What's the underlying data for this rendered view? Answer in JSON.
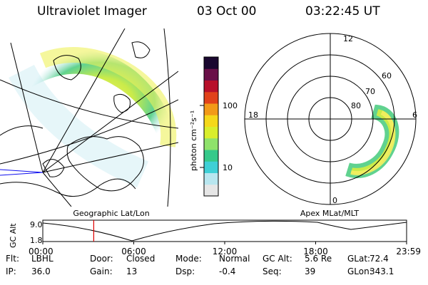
{
  "header": {
    "title": "Ultraviolet Imager",
    "date": "03 Oct 00",
    "time": "03:22:45 UT"
  },
  "left_panel": {
    "label": "Geographic Lat/Lon"
  },
  "colorbar": {
    "axis_label": "photon cm⁻²s⁻¹",
    "tick_100": "100",
    "tick_10": "10",
    "colors": [
      "#e6e6e6",
      "#b8e6ef",
      "#3fd0d6",
      "#35c98a",
      "#8fe26b",
      "#d9ee2c",
      "#f5d81a",
      "#f29a18",
      "#e1421a",
      "#b8102a",
      "#6a1048",
      "#1a0830"
    ]
  },
  "polar": {
    "label": "Apex MLat/MLT",
    "mlt_12": "12",
    "mlt_18": "18",
    "mlt_6": "6",
    "mlt_0": "0",
    "lat_60": "60",
    "lat_70": "70",
    "lat_80": "80"
  },
  "timeline": {
    "axis_label": "GC Alt",
    "y_top": "9.0",
    "y_bottom": "1.8",
    "ticks": [
      "00:00",
      "06:00",
      "12:00",
      "18:00",
      "23:59"
    ],
    "current_time_fraction": 0.14,
    "marker_color": "#dd0000"
  },
  "info": {
    "row1": [
      {
        "label": "Flt:",
        "value": "LBHL"
      },
      {
        "label": "Door:",
        "value": "Closed"
      },
      {
        "label": "Mode:",
        "value": "Normal"
      },
      {
        "label": "GC Alt:",
        "value": "5.6 Re"
      },
      {
        "label": "GLat:",
        "value": "72.4"
      }
    ],
    "row2": [
      {
        "label": "IP:",
        "value": "36.0"
      },
      {
        "label": "Gain:",
        "value": "13"
      },
      {
        "label": "Dsp:",
        "value": "-0.4"
      },
      {
        "label": "Seq:",
        "value": "39"
      },
      {
        "label": "GLon:",
        "value": "343.1"
      }
    ]
  }
}
